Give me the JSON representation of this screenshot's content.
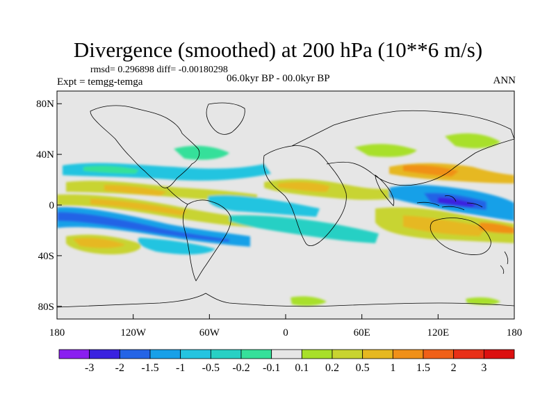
{
  "title": "Divergence (smoothed) at 200 hPa (10**6 m/s)",
  "stats": "rmsd= 0.296898 diff= -0.00180298",
  "experiment": "Expt = temgg-temga",
  "period": "06.0kyr BP - 00.0kyr BP",
  "season": "ANN",
  "map": {
    "y_ticks": [
      {
        "label": "80N",
        "lat": 80
      },
      {
        "label": "40N",
        "lat": 40
      },
      {
        "label": "0",
        "lat": 0
      },
      {
        "label": "40S",
        "lat": -40
      },
      {
        "label": "80S",
        "lat": -80
      }
    ],
    "x_ticks": [
      {
        "label": "180",
        "lon": -180
      },
      {
        "label": "120W",
        "lon": -120
      },
      {
        "label": "60W",
        "lon": -60
      },
      {
        "label": "0",
        "lon": 0
      },
      {
        "label": "60E",
        "lon": 60
      },
      {
        "label": "120E",
        "lon": 120
      },
      {
        "label": "180",
        "lon": 180
      }
    ],
    "lat_range": [
      -90,
      90
    ],
    "lon_range": [
      -180,
      180
    ],
    "background_color": "#e6e6e6"
  },
  "colorbar": {
    "labels": [
      "-3",
      "-2",
      "-1.5",
      "-1",
      "-0.5",
      "-0.2",
      "-0.1",
      "0.1",
      "0.2",
      "0.5",
      "1",
      "1.5",
      "2",
      "3"
    ],
    "colors": [
      "#8a1ff0",
      "#3a22e0",
      "#2464e6",
      "#18a0e8",
      "#24c4e0",
      "#28d0c4",
      "#36e09a",
      "#e6e6e6",
      "#a8e02a",
      "#c8d430",
      "#e6b820",
      "#f09018",
      "#f06018",
      "#e83018",
      "#dc1010"
    ]
  }
}
